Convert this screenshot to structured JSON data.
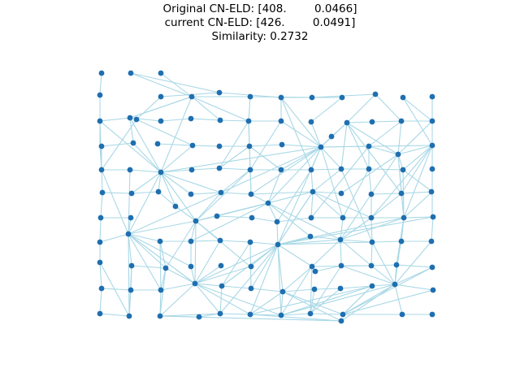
{
  "title": {
    "line1": "Original CN-ELD: [408.        0.0466]",
    "line2": "current CN-ELD: [426.        0.0491]",
    "line3": "Similarity: 0.2732"
  },
  "colors": {
    "node": "#1f6fb0",
    "edge": "#a9d8e6",
    "background": "#ffffff",
    "text": "#000000"
  }
}
